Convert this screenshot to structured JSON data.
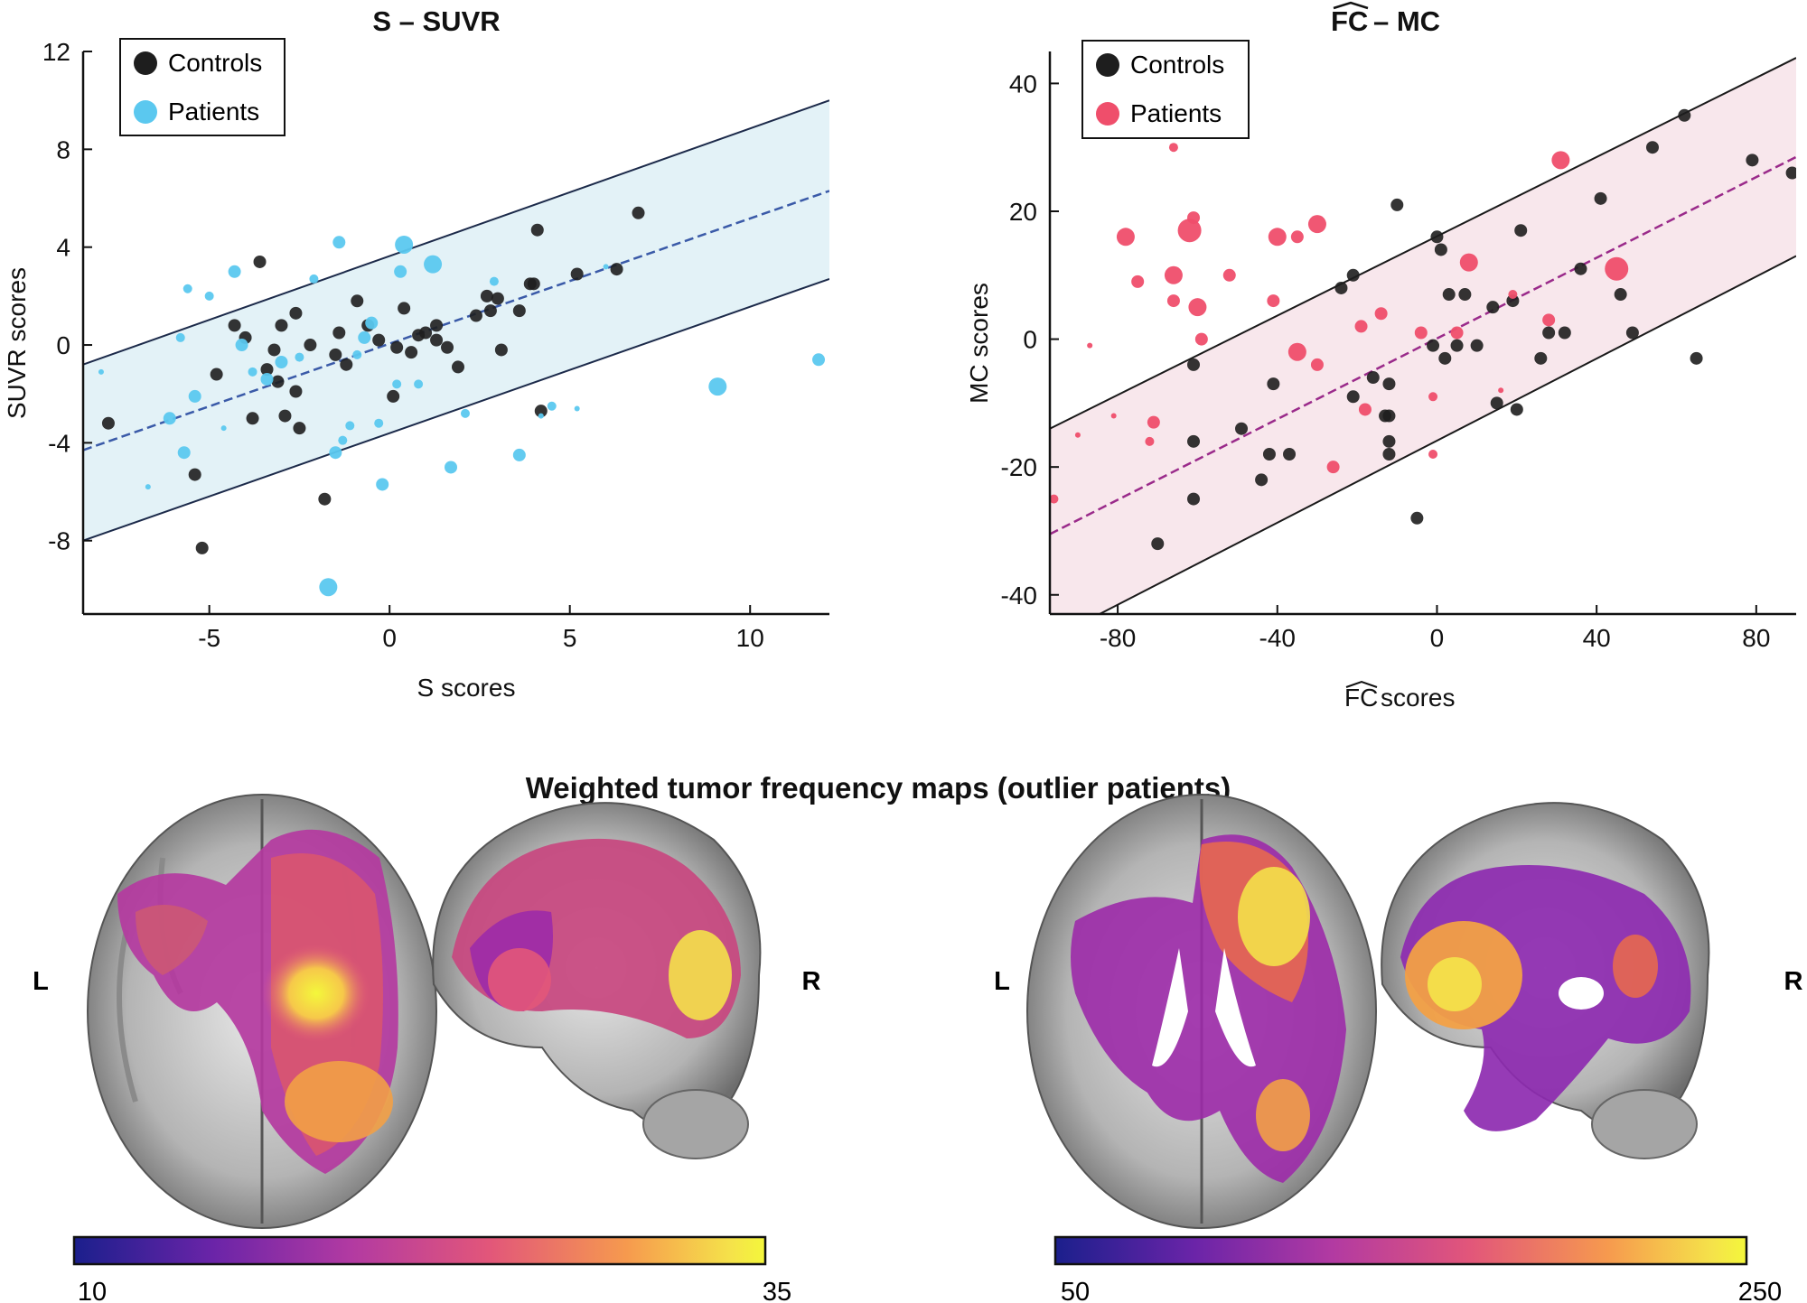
{
  "chart_data": [
    {
      "type": "scatter",
      "title": "S – SUVR",
      "xlabel": "S scores",
      "ylabel": "SUVR scores",
      "xlim": [
        -8.5,
        12.2
      ],
      "ylim": [
        -11,
        12
      ],
      "xticks": [
        "-5",
        "0",
        "5",
        "10"
      ],
      "xtick_values": [
        -5,
        0,
        5,
        10
      ],
      "yticks": [
        "12",
        "8",
        "4",
        "0",
        "-4",
        "-8"
      ],
      "ytick_values": [
        12,
        8,
        4,
        0,
        -4,
        -8
      ],
      "legend": {
        "placement": "top-left",
        "entries": [
          "Controls",
          "Patients"
        ]
      },
      "band": {
        "x": [
          -8.5,
          12.2
        ],
        "lower": [
          -8.0,
          2.7
        ],
        "upper": [
          -0.8,
          10.0
        ],
        "fit": [
          -4.3,
          6.3
        ],
        "fill": "#e3f2f7",
        "edge": "#1c2a4a",
        "fit_color": "#3a5aa8"
      },
      "colors": {
        "controls": "#1e1e1e",
        "patients": "#5bc8ef"
      },
      "series": [
        {
          "name": "Controls",
          "points": [
            [
              -7.8,
              -3.2,
              3
            ],
            [
              -5.4,
              -5.3,
              3
            ],
            [
              -5.2,
              -8.3,
              3
            ],
            [
              -4.8,
              -1.2,
              3
            ],
            [
              -4.3,
              0.8,
              3
            ],
            [
              -4.0,
              0.3,
              3
            ],
            [
              -3.8,
              -3.0,
              3
            ],
            [
              -3.6,
              3.4,
              3
            ],
            [
              -3.4,
              -1.0,
              3
            ],
            [
              -3.2,
              -0.2,
              3
            ],
            [
              -3.1,
              -1.5,
              3
            ],
            [
              -3.0,
              0.8,
              3
            ],
            [
              -2.9,
              -2.9,
              3
            ],
            [
              -2.6,
              -1.9,
              3
            ],
            [
              -2.5,
              -3.4,
              3
            ],
            [
              -2.6,
              1.3,
              3
            ],
            [
              -2.2,
              0.0,
              3
            ],
            [
              -1.8,
              -6.3,
              3
            ],
            [
              -1.5,
              -0.4,
              3
            ],
            [
              -1.4,
              0.5,
              3
            ],
            [
              -1.2,
              -0.8,
              3
            ],
            [
              -0.9,
              1.8,
              3
            ],
            [
              -0.6,
              0.8,
              3
            ],
            [
              -0.3,
              0.2,
              3
            ],
            [
              0.1,
              -2.1,
              3
            ],
            [
              0.2,
              -0.1,
              3
            ],
            [
              0.4,
              1.5,
              3
            ],
            [
              0.6,
              -0.3,
              3
            ],
            [
              0.8,
              0.4,
              3
            ],
            [
              1.0,
              0.5,
              3
            ],
            [
              1.3,
              0.8,
              3
            ],
            [
              1.3,
              0.2,
              3
            ],
            [
              1.6,
              -0.1,
              3
            ],
            [
              1.9,
              -0.9,
              3
            ],
            [
              2.4,
              1.2,
              3
            ],
            [
              2.7,
              2.0,
              3
            ],
            [
              2.8,
              1.4,
              3
            ],
            [
              3.0,
              1.9,
              3
            ],
            [
              3.1,
              -0.2,
              3
            ],
            [
              3.6,
              1.4,
              3
            ],
            [
              3.9,
              2.5,
              3
            ],
            [
              4.0,
              2.5,
              3
            ],
            [
              4.1,
              4.7,
              3
            ],
            [
              4.2,
              -2.7,
              3
            ],
            [
              5.2,
              2.9,
              3
            ],
            [
              6.3,
              3.1,
              3
            ],
            [
              6.9,
              5.4,
              3
            ]
          ]
        },
        {
          "name": "Patients",
          "points": [
            [
              -8.0,
              -1.1,
              1
            ],
            [
              -6.7,
              -5.8,
              1
            ],
            [
              -6.1,
              -3.0,
              3
            ],
            [
              -5.8,
              0.3,
              2
            ],
            [
              -5.7,
              -4.4,
              3
            ],
            [
              -5.6,
              2.3,
              2
            ],
            [
              -5.4,
              -2.1,
              3
            ],
            [
              -5.0,
              2.0,
              2
            ],
            [
              -4.6,
              -3.4,
              1
            ],
            [
              -4.3,
              3.0,
              3
            ],
            [
              -4.1,
              0.0,
              3
            ],
            [
              -3.8,
              -1.1,
              2
            ],
            [
              -3.4,
              -1.4,
              3
            ],
            [
              -3.0,
              -0.7,
              3
            ],
            [
              -2.5,
              -0.5,
              2
            ],
            [
              -2.1,
              2.7,
              2
            ],
            [
              -1.5,
              -4.4,
              3
            ],
            [
              -1.4,
              4.2,
              3
            ],
            [
              -1.3,
              -3.9,
              2
            ],
            [
              -1.1,
              -3.3,
              2
            ],
            [
              -1.7,
              -9.9,
              4
            ],
            [
              -0.9,
              -0.4,
              2
            ],
            [
              -0.7,
              0.3,
              3
            ],
            [
              -0.5,
              0.9,
              3
            ],
            [
              -0.3,
              -3.2,
              2
            ],
            [
              -0.2,
              -5.7,
              3
            ],
            [
              0.2,
              -1.6,
              2
            ],
            [
              0.3,
              3.0,
              3
            ],
            [
              0.4,
              4.1,
              4
            ],
            [
              0.8,
              -1.6,
              2
            ],
            [
              1.2,
              3.3,
              4
            ],
            [
              1.7,
              -5.0,
              3
            ],
            [
              2.1,
              -2.8,
              2
            ],
            [
              2.9,
              2.6,
              2
            ],
            [
              3.6,
              -4.5,
              3
            ],
            [
              4.2,
              -2.9,
              1
            ],
            [
              4.5,
              -2.5,
              2
            ],
            [
              5.2,
              -2.6,
              1
            ],
            [
              6.0,
              3.2,
              1
            ],
            [
              9.1,
              -1.7,
              4
            ],
            [
              11.9,
              -0.6,
              3
            ]
          ]
        }
      ]
    },
    {
      "type": "scatter",
      "title": "FC – MC",
      "title_parts": {
        "main": "FC",
        "rest": " – MC"
      },
      "xlabel": "FC scores",
      "xlabel_parts": {
        "main": "FC",
        "rest": " scores"
      },
      "ylabel": "MC scores",
      "xlim": [
        -97,
        90
      ],
      "ylim": [
        -43,
        45
      ],
      "xticks": [
        "-80",
        "-40",
        "0",
        "40",
        "80"
      ],
      "xtick_values": [
        -80,
        -40,
        0,
        40,
        80
      ],
      "yticks": [
        "40",
        "20",
        "0",
        "-20",
        "-40"
      ],
      "ytick_values": [
        40,
        20,
        0,
        -20,
        -40
      ],
      "legend": {
        "placement": "top-left",
        "entries": [
          "Controls",
          "Patients"
        ]
      },
      "band": {
        "x": [
          -97,
          90
        ],
        "lower": [
          -47,
          13
        ],
        "upper": [
          -14,
          44
        ],
        "fit": [
          -30.5,
          28.5
        ],
        "fill": "#f8e7ec",
        "edge": "#1a1a1a",
        "fit_color": "#9a2a8a"
      },
      "colors": {
        "controls": "#1e1e1e",
        "patients": "#ef4e6b"
      },
      "series": [
        {
          "name": "Controls",
          "points": [
            [
              -70,
              -32,
              3
            ],
            [
              -61,
              -4,
              3
            ],
            [
              -61,
              -16,
              3
            ],
            [
              -61,
              -25,
              3
            ],
            [
              -49,
              -14,
              3
            ],
            [
              -44,
              -22,
              3
            ],
            [
              -42,
              -18,
              3
            ],
            [
              -41,
              -7,
              3
            ],
            [
              -37,
              -18,
              3
            ],
            [
              -24,
              8,
              3
            ],
            [
              -21,
              -9,
              3
            ],
            [
              -21,
              10,
              3
            ],
            [
              -16,
              -6,
              3
            ],
            [
              -13,
              -12,
              3
            ],
            [
              -12,
              -16,
              3
            ],
            [
              -12,
              -7,
              3
            ],
            [
              -12,
              -18,
              3
            ],
            [
              -12,
              -12,
              3
            ],
            [
              -10,
              21,
              3
            ],
            [
              -5,
              -28,
              3
            ],
            [
              -1,
              -1,
              3
            ],
            [
              0,
              16,
              3
            ],
            [
              1,
              14,
              3
            ],
            [
              2,
              -3,
              3
            ],
            [
              3,
              7,
              3
            ],
            [
              5,
              -1,
              3
            ],
            [
              7,
              7,
              3
            ],
            [
              10,
              -1,
              3
            ],
            [
              14,
              5,
              3
            ],
            [
              15,
              -10,
              3
            ],
            [
              19,
              6,
              3
            ],
            [
              20,
              -11,
              3
            ],
            [
              21,
              17,
              3
            ],
            [
              26,
              -3,
              3
            ],
            [
              28,
              1,
              3
            ],
            [
              32,
              1,
              3
            ],
            [
              36,
              11,
              3
            ],
            [
              41,
              22,
              3
            ],
            [
              46,
              7,
              3
            ],
            [
              49,
              1,
              3
            ],
            [
              54,
              30,
              3
            ],
            [
              62,
              35,
              3
            ],
            [
              65,
              -3,
              3
            ],
            [
              79,
              28,
              3
            ],
            [
              89,
              26,
              3
            ]
          ]
        },
        {
          "name": "Patients",
          "points": [
            [
              -96,
              -25,
              2
            ],
            [
              -90,
              -15,
              1
            ],
            [
              -87,
              -1,
              1
            ],
            [
              -81,
              -12,
              1
            ],
            [
              -78,
              16,
              4
            ],
            [
              -75,
              9,
              3
            ],
            [
              -72,
              -16,
              2
            ],
            [
              -71,
              -13,
              3
            ],
            [
              -66,
              10,
              4
            ],
            [
              -66,
              6,
              3
            ],
            [
              -66,
              30,
              2
            ],
            [
              -62,
              17,
              5
            ],
            [
              -61,
              19,
              3
            ],
            [
              -60,
              5,
              4
            ],
            [
              -59,
              0,
              3
            ],
            [
              -52,
              10,
              3
            ],
            [
              -41,
              6,
              3
            ],
            [
              -40,
              16,
              4
            ],
            [
              -35,
              16,
              3
            ],
            [
              -35,
              -2,
              4
            ],
            [
              -30,
              18,
              4
            ],
            [
              -30,
              -4,
              3
            ],
            [
              -26,
              -20,
              3
            ],
            [
              -19,
              2,
              3
            ],
            [
              -18,
              -11,
              3
            ],
            [
              -14,
              4,
              3
            ],
            [
              -4,
              1,
              3
            ],
            [
              -1,
              -18,
              2
            ],
            [
              -1,
              -9,
              2
            ],
            [
              5,
              1,
              3
            ],
            [
              8,
              12,
              4
            ],
            [
              16,
              -8,
              1
            ],
            [
              19,
              7,
              2
            ],
            [
              28,
              3,
              3
            ],
            [
              31,
              28,
              4
            ],
            [
              45,
              11,
              5
            ]
          ]
        }
      ]
    }
  ],
  "maps": {
    "title": "Weighted tumor frequency maps (outlier patients)",
    "left_label_a": "L",
    "right_label_a": "R",
    "left_label_b": "L",
    "right_label_b": "R",
    "colorbar_a": {
      "min": "10",
      "max": "35"
    },
    "colorbar_b": {
      "min": "50",
      "max": "250"
    },
    "colormap": [
      "#1b1f8c",
      "#6a24a8",
      "#b23aa2",
      "#e2567a",
      "#f69a4e",
      "#f5e24a",
      "#f4f73b"
    ]
  }
}
